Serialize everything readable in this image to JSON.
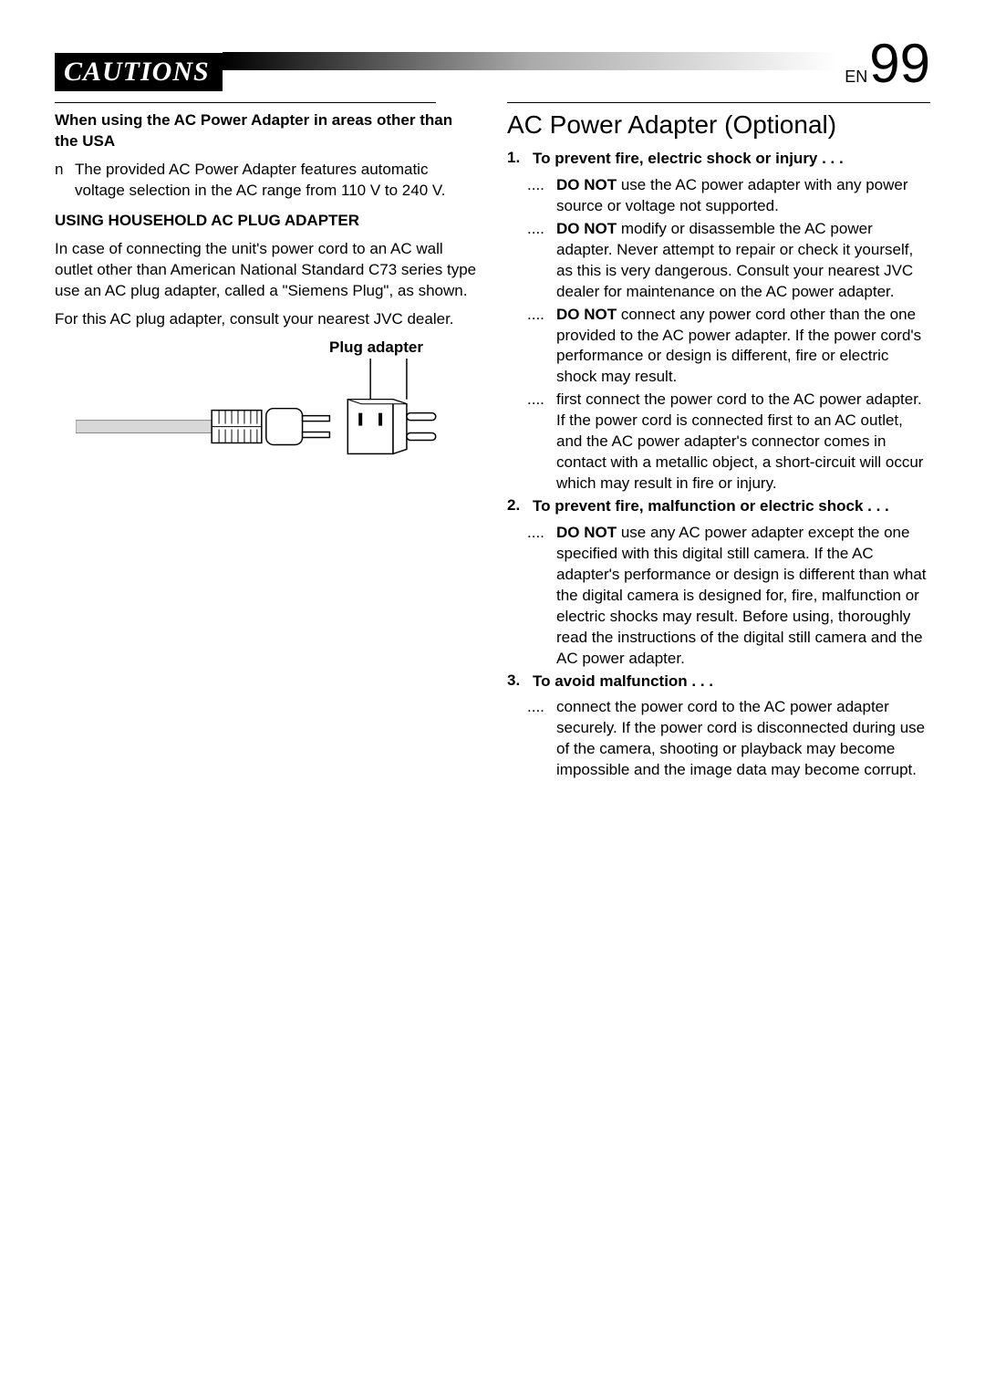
{
  "header": {
    "title": "CAUTIONS",
    "lang": "EN",
    "page": "99"
  },
  "left": {
    "usa_heading": "When using the AC Power Adapter in areas other than the USA",
    "usa_note_marker": "n",
    "usa_note": "The provided AC Power Adapter features automatic voltage selection in the AC range from 110 V to 240 V.",
    "household_heading": "USING HOUSEHOLD AC PLUG ADAPTER",
    "household_p1": "In case of connecting the unit's power cord to an AC wall outlet other than American National Standard C73 series type use an AC plug adapter, called a \"Siemens Plug\", as shown.",
    "household_p2": "For this AC plug adapter, consult your nearest JVC dealer.",
    "plug_label": "Plug adapter"
  },
  "right": {
    "section_title": "AC Power Adapter (Optional)",
    "items": [
      {
        "num": "1.",
        "head": "To prevent fire, electric shock or injury . . .",
        "subs": [
          {
            "bold": "DO NOT",
            "text": " use the AC power adapter with any power source or voltage not supported."
          },
          {
            "bold": "DO NOT",
            "text": " modify or disassemble the AC power adapter. Never attempt to repair or check it yourself, as this is very dangerous. Consult your nearest JVC dealer for maintenance on the AC power adapter."
          },
          {
            "bold": "DO NOT",
            "text": " connect any power cord other than the one provided to the AC power adapter. If the power cord's performance or design is different, fire or electric shock may result."
          },
          {
            "bold": "",
            "text": "first connect the power cord to the AC power adapter. If the power cord is connected first to an AC outlet, and the AC power adapter's connector comes in contact with a metallic object, a short-circuit will occur which may result in fire or injury."
          }
        ]
      },
      {
        "num": "2.",
        "head": "To prevent fire, malfunction or electric shock . . .",
        "subs": [
          {
            "bold": "DO NOT",
            "text": " use any AC power adapter except the one specified with this digital still camera. If the AC adapter's performance or design is different than what the digital camera is designed for, fire, malfunction or electric shocks may result. Before using, thoroughly read the instructions of the digital still camera and the AC power adapter."
          }
        ]
      },
      {
        "num": "3.",
        "head": "To avoid malfunction . . .",
        "subs": [
          {
            "bold": "",
            "text": "connect the power cord to the AC power adapter securely. If the power cord is disconnected during use of the camera, shooting or playback may become impossible and the image data may become corrupt."
          }
        ]
      }
    ],
    "sub_marker": "...."
  },
  "figure": {
    "stroke": "#000000",
    "fill_light": "#ffffff",
    "fill_grey": "#d0d0d0"
  }
}
